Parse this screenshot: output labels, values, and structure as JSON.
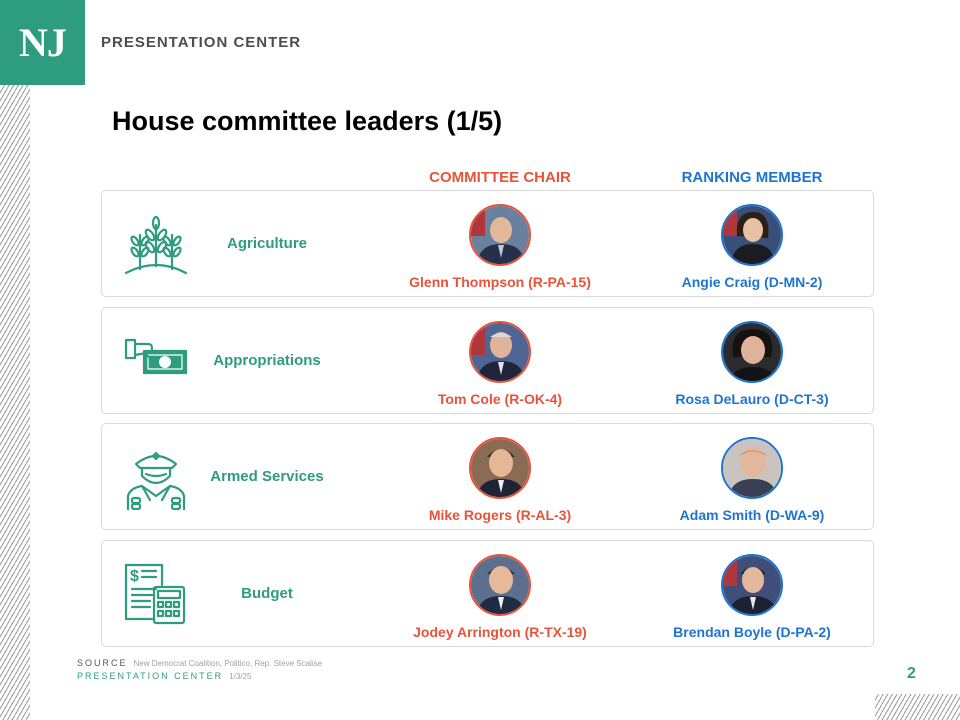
{
  "brand": {
    "logo": "NJ",
    "name": "PRESENTATION CENTER"
  },
  "title": "House committee leaders (1/5)",
  "columns": {
    "chair": "COMMITTEE CHAIR",
    "ranking": "RANKING MEMBER"
  },
  "colors": {
    "accent": "#2e9c7e",
    "chair": "#e8533a",
    "ranking": "#1f74d0"
  },
  "committees": [
    {
      "name": "Agriculture",
      "icon": "wheat-icon",
      "chair": "Glenn Thompson (R-PA-15)",
      "ranking": "Angie Craig (D-MN-2)"
    },
    {
      "name": "Appropriations",
      "icon": "money-hand-icon",
      "chair": "Tom Cole (R-OK-4)",
      "ranking": "Rosa DeLauro (D-CT-3)"
    },
    {
      "name": "Armed Services",
      "icon": "soldier-icon",
      "chair": "Mike Rogers (R-AL-3)",
      "ranking": "Adam Smith (D-WA-9)"
    },
    {
      "name": "Budget",
      "icon": "budget-calculator-icon",
      "chair": "Jodey Arrington (R-TX-19)",
      "ranking": "Brendan Boyle (D-PA-2)"
    }
  ],
  "footer": {
    "source_label": "SOURCE",
    "source_text": "New Democrat Coalition, Politico, Rep. Steve Scalise",
    "center_label": "PRESENTATION CENTER",
    "date": "1/3/25"
  },
  "page_number": "2"
}
